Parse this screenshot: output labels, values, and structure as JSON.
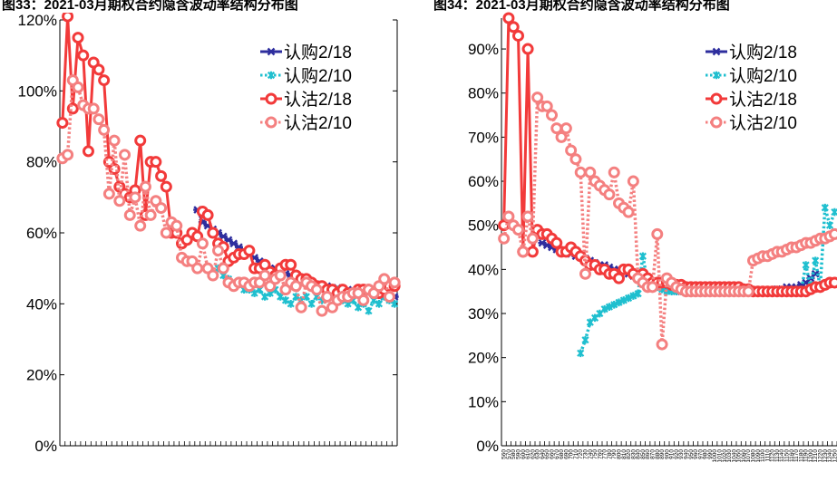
{
  "captions": {
    "left": "图33：2021-03月期权合约隐含波动率结构分布图",
    "right": "图34：2021-03月期权合约隐含波动率结构分布图"
  },
  "colors": {
    "rg218": "#2e2e9e",
    "rg210": "#1fbfcf",
    "rz218": "#f23a3a",
    "rz210": "#f48080"
  },
  "chart_data": [
    {
      "type": "line",
      "title": "图33：2021-03月期权合约隐含波动率结构分布图",
      "ylim": [
        0,
        1.2
      ],
      "yticks": [
        "0%",
        "20%",
        "40%",
        "60%",
        "80%",
        "100%",
        "120%"
      ],
      "grid": false,
      "legend_position": "top-right",
      "x_count": 65,
      "series": [
        {
          "name": "认购2/18",
          "marker": "star",
          "line": "solid",
          "x": [
            26,
            27,
            28,
            29,
            30,
            31,
            32,
            33,
            34,
            35,
            36,
            37,
            38,
            39,
            40,
            41,
            42,
            43,
            44,
            45,
            46,
            47,
            48,
            49,
            50,
            51,
            52,
            53,
            54,
            55,
            56,
            57,
            58,
            59,
            60,
            61,
            62,
            63,
            64
          ],
          "values": [
            0.665,
            0.63,
            0.62,
            0.61,
            0.6,
            0.59,
            0.58,
            0.57,
            0.56,
            0.55,
            0.54,
            0.53,
            0.52,
            0.51,
            0.5,
            0.5,
            0.49,
            0.485,
            0.48,
            0.475,
            0.47,
            0.465,
            0.46,
            0.455,
            0.45,
            0.45,
            0.445,
            0.445,
            0.44,
            0.44,
            0.435,
            0.435,
            0.43,
            0.43,
            0.425,
            0.425,
            0.42,
            0.42,
            0.42
          ]
        },
        {
          "name": "认购2/10",
          "marker": "x",
          "line": "dotted",
          "x": [
            30,
            31,
            32,
            33,
            34,
            35,
            36,
            37,
            38,
            39,
            40,
            41,
            42,
            43,
            44,
            45,
            46,
            47,
            48,
            49,
            50,
            51,
            52,
            53,
            54,
            55,
            56,
            57,
            58,
            59,
            60,
            61,
            62,
            63,
            64
          ],
          "values": [
            0.5,
            0.48,
            0.47,
            0.45,
            0.46,
            0.44,
            0.44,
            0.43,
            0.44,
            0.42,
            0.43,
            0.44,
            0.42,
            0.41,
            0.4,
            0.42,
            0.41,
            0.42,
            0.4,
            0.42,
            0.41,
            0.42,
            0.43,
            0.44,
            0.41,
            0.4,
            0.41,
            0.39,
            0.4,
            0.38,
            0.41,
            0.4,
            0.42,
            0.41,
            0.4
          ]
        },
        {
          "name": "认沽2/18",
          "marker": "circle",
          "line": "solid",
          "x": [
            0,
            1,
            2,
            3,
            4,
            5,
            6,
            7,
            8,
            9,
            10,
            11,
            12,
            13,
            14,
            15,
            16,
            17,
            18,
            19,
            20,
            21,
            22,
            23,
            24,
            25,
            26,
            27,
            28,
            29,
            30,
            31,
            32,
            33,
            34,
            35,
            36,
            37,
            38,
            39,
            40,
            41,
            42,
            43,
            44,
            45,
            46,
            47,
            48,
            49,
            50,
            51,
            52,
            53,
            54,
            55,
            56,
            57,
            58,
            59,
            60,
            61,
            62,
            63,
            64
          ],
          "values": [
            0.91,
            1.21,
            0.95,
            1.15,
            1.1,
            0.83,
            1.08,
            1.06,
            1.03,
            0.8,
            0.78,
            0.73,
            0.71,
            0.7,
            0.72,
            0.86,
            0.65,
            0.8,
            0.8,
            0.76,
            0.73,
            0.6,
            0.6,
            0.57,
            0.58,
            0.6,
            0.59,
            0.66,
            0.65,
            0.6,
            0.57,
            0.56,
            0.52,
            0.53,
            0.54,
            0.54,
            0.55,
            0.5,
            0.5,
            0.51,
            0.49,
            0.48,
            0.5,
            0.51,
            0.51,
            0.48,
            0.47,
            0.47,
            0.46,
            0.45,
            0.45,
            0.44,
            0.44,
            0.43,
            0.44,
            0.43,
            0.43,
            0.44,
            0.44,
            0.44,
            0.43,
            0.43,
            0.44,
            0.45,
            0.45
          ]
        },
        {
          "name": "认沽2/10",
          "marker": "circle",
          "line": "dotted",
          "x": [
            0,
            1,
            2,
            3,
            4,
            5,
            6,
            7,
            8,
            9,
            10,
            11,
            12,
            13,
            14,
            15,
            16,
            17,
            18,
            19,
            20,
            21,
            22,
            23,
            24,
            25,
            26,
            27,
            28,
            29,
            30,
            31,
            32,
            33,
            34,
            35,
            36,
            37,
            38,
            39,
            40,
            41,
            42,
            43,
            44,
            45,
            46,
            47,
            48,
            49,
            50,
            51,
            52,
            53,
            54,
            55,
            56,
            57,
            58,
            59,
            60,
            61,
            62,
            63,
            64
          ],
          "values": [
            0.81,
            0.82,
            1.03,
            1.01,
            0.96,
            0.95,
            0.95,
            0.92,
            0.89,
            0.71,
            0.86,
            0.69,
            0.82,
            0.65,
            0.7,
            0.62,
            0.73,
            0.65,
            0.69,
            0.67,
            0.6,
            0.63,
            0.62,
            0.53,
            0.52,
            0.52,
            0.5,
            0.57,
            0.5,
            0.48,
            0.55,
            0.5,
            0.46,
            0.45,
            0.46,
            0.46,
            0.45,
            0.46,
            0.46,
            0.48,
            0.45,
            0.47,
            0.48,
            0.44,
            0.46,
            0.45,
            0.39,
            0.46,
            0.45,
            0.44,
            0.38,
            0.42,
            0.39,
            0.41,
            0.42,
            0.42,
            0.43,
            0.43,
            0.41,
            0.44,
            0.43,
            0.45,
            0.47,
            0.42,
            0.46
          ]
        }
      ]
    },
    {
      "type": "line",
      "title": "图34：2021-03月期权合约隐含波动率结构分布图",
      "ylim": [
        0,
        0.97
      ],
      "yticks": [
        "0%",
        "10%",
        "20%",
        "30%",
        "40%",
        "50%",
        "60%",
        "70%",
        "80%",
        "90%"
      ],
      "grid": false,
      "legend_position": "top-right",
      "x_count": 70,
      "x_tick_labels": [
        "560",
        "570",
        "580",
        "590",
        "600",
        "610",
        "620",
        "630",
        "640",
        "650",
        "660",
        "670",
        "680",
        "690",
        "700",
        "710",
        "720",
        "730",
        "740",
        "750",
        "760",
        "770",
        "780",
        "790",
        "800",
        "810",
        "820",
        "830",
        "840",
        "850",
        "860",
        "870",
        "880",
        "890",
        "900",
        "910",
        "920",
        "930",
        "940",
        "950",
        "960",
        "970",
        "980",
        "990",
        "1000",
        "1010",
        "1020",
        "1030",
        "1040",
        "1050",
        "1060",
        "1070",
        "1080",
        "1090",
        "1100",
        "1110",
        "1120",
        "1130",
        "1140",
        "1150",
        "1160",
        "1170",
        "1180",
        "1190",
        "1200",
        "1210",
        "1220",
        "1230",
        "1240",
        "1250"
      ],
      "series": [
        {
          "name": "认购2/18",
          "marker": "star",
          "line": "solid",
          "x": [
            8,
            9,
            10,
            11,
            12,
            13,
            14,
            15,
            16,
            17,
            18,
            19,
            20,
            21,
            22,
            23,
            24,
            25,
            26,
            27,
            28,
            29,
            30,
            31,
            32,
            33,
            34,
            35,
            36,
            37,
            38,
            39,
            40,
            41,
            42,
            43,
            44,
            45,
            46,
            47,
            48,
            49,
            50,
            51,
            52,
            53,
            54,
            55,
            56,
            57,
            58,
            59,
            60,
            61,
            62,
            63,
            64,
            65
          ],
          "values": [
            0.46,
            0.455,
            0.45,
            0.445,
            0.44,
            0.44,
            0.435,
            0.43,
            0.43,
            0.425,
            0.42,
            0.415,
            0.41,
            0.41,
            0.405,
            0.4,
            0.4,
            0.395,
            0.39,
            0.385,
            0.38,
            0.375,
            0.37,
            0.365,
            0.36,
            0.36,
            0.355,
            0.355,
            0.35,
            0.35,
            0.35,
            0.35,
            0.35,
            0.35,
            0.35,
            0.35,
            0.35,
            0.35,
            0.35,
            0.35,
            0.35,
            0.35,
            0.35,
            0.35,
            0.35,
            0.35,
            0.35,
            0.35,
            0.35,
            0.355,
            0.355,
            0.36,
            0.36,
            0.36,
            0.365,
            0.37,
            0.38,
            0.39
          ]
        },
        {
          "name": "认购2/10",
          "marker": "x",
          "line": "dotted",
          "x": [
            16,
            17,
            18,
            19,
            20,
            21,
            22,
            23,
            24,
            25,
            26,
            27,
            28,
            29,
            30,
            31,
            32,
            33,
            34,
            35,
            36,
            37,
            38,
            39,
            40,
            41,
            42,
            43,
            44,
            45,
            46,
            47,
            48,
            49,
            50,
            51,
            52,
            53,
            54,
            55,
            56,
            57,
            58,
            59,
            60,
            61,
            62,
            63,
            64,
            65,
            66,
            67,
            68,
            69
          ],
          "values": [
            0.21,
            0.24,
            0.28,
            0.29,
            0.3,
            0.31,
            0.315,
            0.32,
            0.325,
            0.33,
            0.335,
            0.34,
            0.345,
            0.43,
            0.37,
            0.37,
            0.36,
            0.355,
            0.35,
            0.35,
            0.35,
            0.35,
            0.35,
            0.35,
            0.35,
            0.35,
            0.35,
            0.35,
            0.35,
            0.35,
            0.35,
            0.35,
            0.35,
            0.35,
            0.35,
            0.35,
            0.35,
            0.35,
            0.35,
            0.35,
            0.35,
            0.35,
            0.35,
            0.35,
            0.35,
            0.35,
            0.35,
            0.41,
            0.36,
            0.42,
            0.36,
            0.54,
            0.5,
            0.53
          ]
        },
        {
          "name": "认沽2/18",
          "marker": "circle",
          "line": "solid",
          "x": [
            0,
            1,
            2,
            3,
            4,
            5,
            6,
            7,
            8,
            9,
            10,
            11,
            12,
            13,
            14,
            15,
            16,
            17,
            18,
            19,
            20,
            21,
            22,
            23,
            24,
            25,
            26,
            27,
            28,
            29,
            30,
            31,
            32,
            33,
            34,
            35,
            36,
            37,
            38,
            39,
            40,
            41,
            42,
            43,
            44,
            45,
            46,
            47,
            48,
            49,
            50,
            51,
            52,
            53,
            54,
            55,
            56,
            57,
            58,
            59,
            60,
            61,
            62,
            63,
            64,
            65,
            66,
            67,
            68,
            69
          ],
          "values": [
            0.5,
            0.97,
            0.95,
            0.93,
            0.44,
            0.9,
            0.44,
            0.49,
            0.48,
            0.48,
            0.47,
            0.46,
            0.44,
            0.44,
            0.45,
            0.44,
            0.43,
            0.42,
            0.41,
            0.41,
            0.4,
            0.4,
            0.39,
            0.39,
            0.38,
            0.4,
            0.4,
            0.39,
            0.38,
            0.39,
            0.38,
            0.37,
            0.37,
            0.37,
            0.37,
            0.365,
            0.365,
            0.365,
            0.36,
            0.36,
            0.36,
            0.36,
            0.36,
            0.36,
            0.36,
            0.36,
            0.36,
            0.36,
            0.36,
            0.36,
            0.355,
            0.355,
            0.35,
            0.35,
            0.35,
            0.35,
            0.35,
            0.35,
            0.35,
            0.35,
            0.35,
            0.35,
            0.35,
            0.35,
            0.355,
            0.36,
            0.36,
            0.365,
            0.37,
            0.37
          ]
        },
        {
          "name": "认沽2/10",
          "marker": "circle",
          "line": "dotted",
          "x": [
            0,
            1,
            2,
            3,
            4,
            5,
            6,
            7,
            8,
            9,
            10,
            11,
            12,
            13,
            14,
            15,
            16,
            17,
            18,
            19,
            20,
            21,
            22,
            23,
            24,
            25,
            26,
            27,
            28,
            29,
            30,
            31,
            32,
            33,
            34,
            35,
            36,
            37,
            38,
            39,
            40,
            41,
            42,
            43,
            44,
            45,
            46,
            47,
            48,
            49,
            50,
            51,
            52,
            53,
            54,
            55,
            56,
            57,
            58,
            59,
            60,
            61,
            62,
            63,
            64,
            65,
            66,
            67,
            68,
            69
          ],
          "values": [
            0.47,
            0.52,
            0.5,
            0.49,
            0.44,
            0.52,
            0.47,
            0.79,
            0.77,
            0.77,
            0.75,
            0.72,
            0.7,
            0.72,
            0.67,
            0.65,
            0.62,
            0.39,
            0.62,
            0.6,
            0.59,
            0.58,
            0.57,
            0.62,
            0.55,
            0.54,
            0.53,
            0.6,
            0.38,
            0.37,
            0.36,
            0.36,
            0.48,
            0.23,
            0.38,
            0.37,
            0.36,
            0.355,
            0.35,
            0.35,
            0.35,
            0.35,
            0.35,
            0.35,
            0.35,
            0.35,
            0.35,
            0.35,
            0.35,
            0.35,
            0.35,
            0.35,
            0.42,
            0.425,
            0.43,
            0.43,
            0.435,
            0.44,
            0.44,
            0.445,
            0.45,
            0.45,
            0.455,
            0.46,
            0.46,
            0.465,
            0.47,
            0.47,
            0.475,
            0.48
          ]
        }
      ]
    }
  ]
}
